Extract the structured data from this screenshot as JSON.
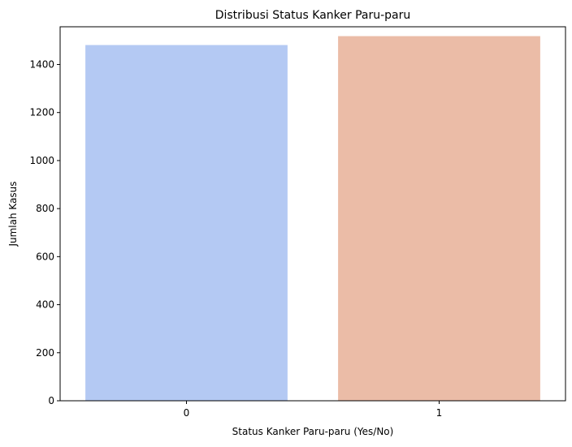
{
  "chart_data": {
    "type": "bar",
    "title": "Distribusi Status Kanker Paru-paru",
    "xlabel": "Status Kanker Paru-paru (Yes/No)",
    "ylabel": "Jumlah Kasus",
    "categories": [
      "0",
      "1"
    ],
    "values": [
      1481,
      1518
    ],
    "colors": [
      "#b4c9f3",
      "#ebbca7"
    ],
    "ylim": [
      0,
      1557
    ],
    "yticks": [
      0,
      200,
      400,
      600,
      800,
      1000,
      1200,
      1400
    ],
    "grid": false,
    "legend": "none"
  }
}
